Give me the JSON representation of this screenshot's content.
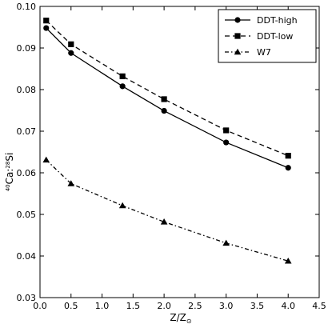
{
  "chart_data": {
    "type": "line",
    "xlabel": "Z/Z",
    "xlabel_sub": "⊙",
    "ylabel": "Ca:",
    "ylabel_sup1": "40",
    "ylabel_sup2": "28",
    "ylabel_tail": "Si",
    "xlim": [
      0,
      4.5
    ],
    "ylim": [
      0.03,
      0.1
    ],
    "xticks": [
      "0.0",
      "0.5",
      "1.0",
      "1.5",
      "2.0",
      "2.5",
      "3.0",
      "3.5",
      "4.0",
      "4.5"
    ],
    "yticks": [
      "0.03",
      "0.04",
      "0.05",
      "0.06",
      "0.07",
      "0.08",
      "0.09",
      "0.10"
    ],
    "grid": false,
    "legend_position": "top-right",
    "series": [
      {
        "name": "DDT-high",
        "marker": "circle",
        "line_style": "solid",
        "x": [
          0.1,
          0.5,
          1.33,
          2.0,
          3.0,
          4.0
        ],
        "y": [
          0.0948,
          0.0888,
          0.0808,
          0.0749,
          0.0673,
          0.0612
        ]
      },
      {
        "name": "DDT-low",
        "marker": "square",
        "line_style": "dashed",
        "x": [
          0.1,
          0.5,
          1.33,
          2.0,
          3.0,
          4.0
        ],
        "y": [
          0.0966,
          0.0909,
          0.0832,
          0.0777,
          0.0702,
          0.0641
        ]
      },
      {
        "name": "W7",
        "marker": "triangle",
        "line_style": "dashdot",
        "x": [
          0.1,
          0.5,
          1.33,
          2.0,
          3.0,
          4.0
        ],
        "y": [
          0.0631,
          0.0574,
          0.0521,
          0.0482,
          0.0431,
          0.0388
        ]
      }
    ]
  }
}
